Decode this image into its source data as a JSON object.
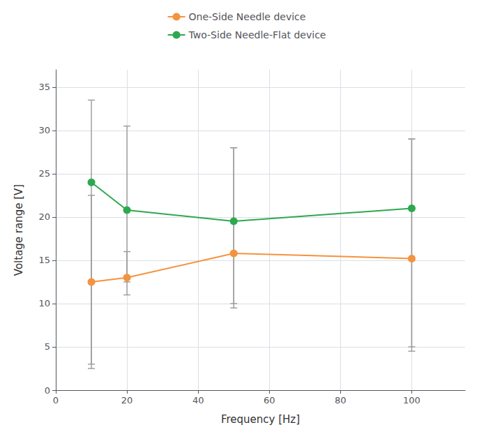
{
  "chart_data": {
    "type": "line",
    "xlabel": "Frequency [Hz]",
    "ylabel": "Voltage range [V]",
    "x": [
      10,
      20,
      50,
      100
    ],
    "series": [
      {
        "name": "One-Side Needle device",
        "color": "#f5923e",
        "marker": "circle",
        "values": [
          12.5,
          13.0,
          15.8,
          15.2
        ],
        "error_bar": {
          "low": [
            9.5,
            2.0,
            6.3,
            10.2
          ],
          "high": [
            10.0,
            3.0,
            12.2,
            13.8
          ],
          "color": "#999999"
        }
      },
      {
        "name": "Two-Side Needle-Flat device",
        "color": "#2ea84f",
        "marker": "circle",
        "values": [
          24.0,
          20.8,
          19.5,
          21.0
        ],
        "error_bar": {
          "low": [
            21.5,
            8.3,
            9.5,
            16.5
          ],
          "high": [
            9.5,
            9.7,
            8.5,
            8.0
          ],
          "color": "#999999"
        }
      }
    ],
    "xlim": [
      0,
      115
    ],
    "ylim": [
      0,
      37
    ],
    "xticks": [
      0,
      20,
      40,
      60,
      80,
      100
    ],
    "yticks": [
      0,
      5,
      10,
      15,
      20,
      25,
      30,
      35
    ],
    "grid": true,
    "legend": "top"
  }
}
